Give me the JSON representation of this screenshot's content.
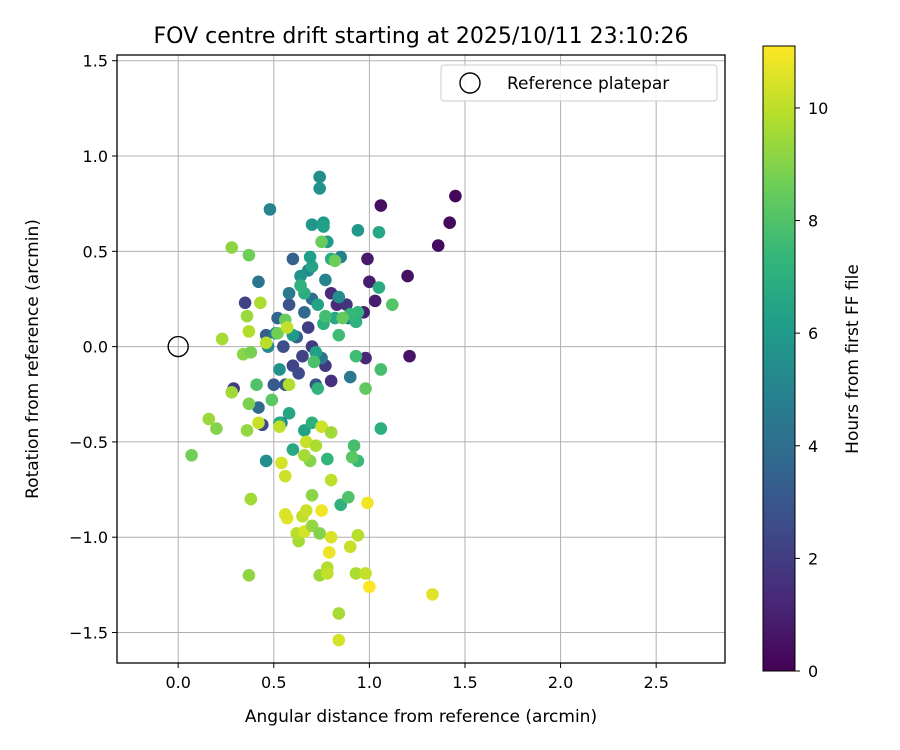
{
  "chart_data": {
    "type": "scatter",
    "title": "FOV centre drift starting at 2025/10/11 23:10:26",
    "xlabel": "Angular distance from reference (arcmin)",
    "ylabel": "Rotation from reference (arcmin)",
    "xlim": [
      -0.32,
      2.86
    ],
    "ylim": [
      -1.66,
      1.53
    ],
    "xticks": [
      0.0,
      0.5,
      1.0,
      1.5,
      2.0,
      2.5
    ],
    "xtick_labels": [
      "0.0",
      "0.5",
      "1.0",
      "1.5",
      "2.0",
      "2.5"
    ],
    "yticks": [
      -1.5,
      -1.0,
      -0.5,
      0.0,
      0.5,
      1.0,
      1.5
    ],
    "ytick_labels": [
      "−1.5",
      "−1.0",
      "−0.5",
      "0.0",
      "0.5",
      "1.0",
      "1.5"
    ],
    "grid": true,
    "legend": {
      "placement": "upper right",
      "label": "Reference platepar"
    },
    "reference_point": {
      "x": 0.0,
      "y": 0.0
    },
    "colorbar": {
      "label": "Hours from first FF file",
      "colormap": "viridis",
      "range": [
        0,
        11.1
      ],
      "ticks": [
        0,
        2,
        4,
        6,
        8,
        10
      ],
      "tick_labels": [
        "0",
        "2",
        "4",
        "6",
        "8",
        "10"
      ],
      "stops": [
        "#440154",
        "#482878",
        "#3e4989",
        "#31688e",
        "#26828e",
        "#1f9e89",
        "#35b779",
        "#6ece58",
        "#b5de2b",
        "#fde725"
      ]
    },
    "series": [
      {
        "color_by": "hours",
        "points": [
          [
            1.45,
            0.79,
            0.2
          ],
          [
            1.42,
            0.65,
            0.3
          ],
          [
            1.36,
            0.53,
            0.3
          ],
          [
            1.06,
            0.74,
            0.4
          ],
          [
            1.2,
            0.37,
            0.5
          ],
          [
            1.21,
            -0.05,
            0.6
          ],
          [
            0.99,
            0.46,
            0.8
          ],
          [
            1.0,
            0.34,
            0.9
          ],
          [
            1.03,
            0.24,
            0.9
          ],
          [
            0.97,
            0.18,
            1.0
          ],
          [
            0.98,
            -0.06,
            1.2
          ],
          [
            0.8,
            0.28,
            1.4
          ],
          [
            0.83,
            0.22,
            1.3
          ],
          [
            0.8,
            -0.18,
            1.5
          ],
          [
            0.77,
            -0.1,
            1.8
          ],
          [
            0.7,
            0.0,
            1.9
          ],
          [
            0.88,
            0.22,
            1.7
          ],
          [
            0.68,
            0.1,
            2.1
          ],
          [
            0.65,
            -0.05,
            2.2
          ],
          [
            0.6,
            -0.1,
            2.3
          ],
          [
            0.35,
            0.23,
            2.2
          ],
          [
            0.29,
            -0.22,
            2.0
          ],
          [
            0.44,
            -0.41,
            2.6
          ],
          [
            0.58,
            0.22,
            2.8
          ],
          [
            0.63,
            -0.14,
            2.5
          ],
          [
            0.55,
            0.0,
            2.7
          ],
          [
            0.72,
            -0.2,
            3.0
          ],
          [
            0.6,
            0.46,
            3.5
          ],
          [
            0.5,
            -0.2,
            3.2
          ],
          [
            0.52,
            0.15,
            3.6
          ],
          [
            0.46,
            0.06,
            3.3
          ],
          [
            0.42,
            0.34,
            4.3
          ],
          [
            0.42,
            -0.32,
            3.9
          ],
          [
            0.48,
            0.72,
            5.0
          ],
          [
            0.56,
            -0.2,
            3.1
          ],
          [
            0.62,
            0.05,
            3.4
          ],
          [
            0.66,
            0.18,
            3.8
          ],
          [
            0.7,
            0.25,
            4.0
          ],
          [
            0.75,
            -0.06,
            4.4
          ],
          [
            0.58,
            0.28,
            4.5
          ],
          [
            0.68,
            0.4,
            5.2
          ],
          [
            0.74,
            0.89,
            5.5
          ],
          [
            0.74,
            0.83,
            5.6
          ],
          [
            0.85,
            0.47,
            4.9
          ],
          [
            0.89,
            0.15,
            4.7
          ],
          [
            0.9,
            -0.16,
            4.5
          ],
          [
            0.77,
            0.35,
            5.0
          ],
          [
            0.7,
            0.64,
            5.8
          ],
          [
            0.76,
            0.65,
            6.0
          ],
          [
            0.76,
            0.63,
            6.3
          ],
          [
            0.94,
            0.61,
            5.9
          ],
          [
            0.84,
            0.26,
            5.4
          ],
          [
            0.64,
            0.37,
            5.7
          ],
          [
            0.47,
            0.0,
            5.3
          ],
          [
            0.51,
            0.07,
            5.1
          ],
          [
            0.54,
            -0.4,
            4.9
          ],
          [
            0.46,
            -0.6,
            5.5
          ],
          [
            0.53,
            -0.12,
            5.6
          ],
          [
            0.6,
            0.06,
            6.1
          ],
          [
            0.72,
            -0.03,
            6.3
          ],
          [
            0.7,
            0.42,
            6.5
          ],
          [
            0.78,
            0.55,
            6.0
          ],
          [
            0.69,
            0.47,
            6.2
          ],
          [
            0.73,
            0.22,
            6.4
          ],
          [
            0.82,
            0.15,
            6.6
          ],
          [
            0.8,
            0.46,
            6.8
          ],
          [
            0.66,
            0.28,
            6.9
          ],
          [
            0.76,
            0.12,
            7.0
          ],
          [
            0.64,
            0.32,
            7.1
          ],
          [
            0.58,
            -0.35,
            6.5
          ],
          [
            0.6,
            -0.54,
            6.7
          ],
          [
            0.53,
            -0.4,
            6.8
          ],
          [
            0.66,
            -0.44,
            6.4
          ],
          [
            0.7,
            -0.4,
            7.0
          ],
          [
            0.73,
            -0.22,
            7.2
          ],
          [
            1.05,
            0.6,
            6.6
          ],
          [
            1.05,
            0.31,
            6.8
          ],
          [
            0.93,
            0.13,
            7.1
          ],
          [
            0.94,
            0.18,
            7.3
          ],
          [
            0.9,
            0.17,
            7.4
          ],
          [
            0.84,
            0.06,
            7.6
          ],
          [
            0.77,
            0.16,
            7.7
          ],
          [
            0.71,
            -0.08,
            7.9
          ],
          [
            0.85,
            -0.83,
            7.1
          ],
          [
            0.78,
            -0.59,
            7.3
          ],
          [
            0.94,
            -0.6,
            7.5
          ],
          [
            0.92,
            -0.52,
            7.8
          ],
          [
            0.89,
            -0.79,
            8.0
          ],
          [
            0.91,
            -0.58,
            8.2
          ],
          [
            1.06,
            -0.43,
            7.0
          ],
          [
            1.06,
            -0.12,
            7.8
          ],
          [
            0.98,
            -0.22,
            8.3
          ],
          [
            0.93,
            -0.05,
            7.6
          ],
          [
            1.12,
            0.22,
            8.1
          ],
          [
            0.86,
            0.15,
            8.4
          ],
          [
            0.75,
            0.55,
            8.5
          ],
          [
            0.82,
            0.45,
            8.6
          ],
          [
            0.56,
            0.14,
            8.5
          ],
          [
            0.52,
            0.07,
            8.7
          ],
          [
            0.49,
            -0.28,
            8.2
          ],
          [
            0.37,
            0.48,
            8.6
          ],
          [
            0.28,
            0.52,
            9.2
          ],
          [
            0.36,
            0.16,
            9.4
          ],
          [
            0.34,
            -0.04,
            9.1
          ],
          [
            0.38,
            -0.03,
            8.8
          ],
          [
            0.41,
            -0.2,
            8.0
          ],
          [
            0.37,
            -0.3,
            8.9
          ],
          [
            0.28,
            -0.24,
            9.5
          ],
          [
            0.23,
            0.04,
            9.6
          ],
          [
            0.16,
            -0.38,
            9.4
          ],
          [
            0.2,
            -0.43,
            9.0
          ],
          [
            0.07,
            -0.57,
            8.7
          ],
          [
            0.36,
            -0.44,
            9.3
          ],
          [
            0.38,
            -0.8,
            9.5
          ],
          [
            0.37,
            -1.2,
            9.2
          ],
          [
            0.43,
            0.23,
            9.7
          ],
          [
            0.37,
            0.08,
            9.8
          ],
          [
            0.42,
            -0.4,
            10.2
          ],
          [
            0.46,
            0.02,
            9.9
          ],
          [
            0.53,
            -0.42,
            10.0
          ],
          [
            0.56,
            -0.68,
            10.3
          ],
          [
            0.54,
            -0.61,
            10.4
          ],
          [
            0.57,
            -0.9,
            10.6
          ],
          [
            0.56,
            -0.88,
            10.5
          ],
          [
            0.58,
            -0.2,
            9.8
          ],
          [
            0.57,
            0.1,
            10.1
          ],
          [
            0.63,
            -1.02,
            9.6
          ],
          [
            0.62,
            -0.98,
            9.9
          ],
          [
            0.65,
            -0.89,
            10.0
          ],
          [
            0.67,
            -0.86,
            10.2
          ],
          [
            0.66,
            -0.97,
            10.4
          ],
          [
            0.67,
            -0.5,
            10.2
          ],
          [
            0.72,
            -0.52,
            9.7
          ],
          [
            0.75,
            -0.42,
            10.3
          ],
          [
            0.8,
            -0.45,
            9.5
          ],
          [
            0.7,
            -0.78,
            9.1
          ],
          [
            0.7,
            -0.94,
            9.3
          ],
          [
            0.74,
            -0.98,
            9.0
          ],
          [
            0.74,
            -1.2,
            9.4
          ],
          [
            0.78,
            -1.16,
            9.8
          ],
          [
            0.78,
            -1.19,
            10.1
          ],
          [
            0.8,
            -1.0,
            10.5
          ],
          [
            0.79,
            -1.08,
            10.8
          ],
          [
            0.75,
            -0.86,
            10.9
          ],
          [
            0.8,
            -0.7,
            10.0
          ],
          [
            0.84,
            -1.4,
            9.6
          ],
          [
            0.84,
            -1.54,
            10.4
          ],
          [
            0.9,
            -1.05,
            10.2
          ],
          [
            0.94,
            -0.99,
            9.9
          ],
          [
            0.93,
            -1.19,
            9.7
          ],
          [
            0.98,
            -1.19,
            10.1
          ],
          [
            0.99,
            -0.82,
            10.9
          ],
          [
            1.0,
            -1.26,
            11.1
          ],
          [
            1.33,
            -1.3,
            10.6
          ],
          [
            0.69,
            -0.6,
            9.0
          ],
          [
            0.66,
            -0.57,
            9.6
          ]
        ]
      }
    ]
  }
}
